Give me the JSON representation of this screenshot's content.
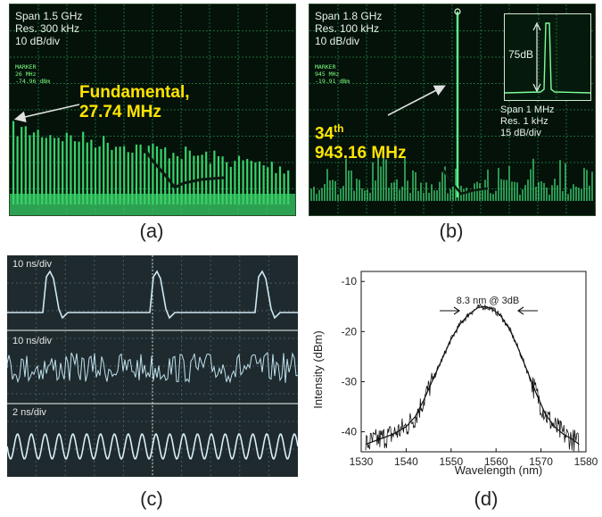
{
  "panels": {
    "a": {
      "caption": "(a)",
      "settings": [
        "Span 1.5 GHz",
        "Res. 300 kHz",
        "10 dB/div"
      ],
      "marker": [
        "MARKER",
        "26 MHz",
        "-74.96 dBm"
      ],
      "annotation_line1": "Fundamental,",
      "annotation_line2": "27.74 MHz",
      "colors": {
        "trace": "#39d26a",
        "screen": "#04120a"
      }
    },
    "b": {
      "caption": "(b)",
      "settings": [
        "Span 1.8 GHz",
        "Res. 100 kHz",
        "10 dB/div"
      ],
      "marker": [
        "MARKER",
        "945 MHz",
        "-19.91 dBm"
      ],
      "annotation_line1_base": "34",
      "annotation_line1_sup": "th",
      "annotation_line2": "943.16 MHz",
      "inset": {
        "label": "75dB",
        "settings": [
          "Span 1 MHz",
          "Res. 1 kHz",
          "15 dB/div"
        ]
      }
    },
    "c": {
      "caption": "(c)",
      "traces": [
        {
          "label": "10 ns/div"
        },
        {
          "label": "10 ns/div"
        },
        {
          "label": "2 ns/div"
        }
      ]
    },
    "d": {
      "caption": "(d)",
      "annotation": "8.3 nm @ 3dB"
    }
  },
  "chart_data": {
    "type": "line",
    "title": "",
    "xlabel": "Wavelength (nm)",
    "ylabel": "Intensity (dBm)",
    "xlim": [
      1530,
      1580
    ],
    "ylim": [
      -44,
      -8
    ],
    "xticks": [
      1530,
      1540,
      1550,
      1560,
      1570,
      1580
    ],
    "yticks": [
      -10,
      -20,
      -30,
      -40
    ],
    "grid": false,
    "series": [
      {
        "x": [
          1531,
          1534,
          1537,
          1540,
          1542,
          1544,
          1546,
          1548,
          1550,
          1552,
          1554,
          1556,
          1557.5,
          1559,
          1561,
          1563,
          1565,
          1567,
          1569,
          1571,
          1573,
          1575,
          1577,
          1578.5
        ],
        "y": [
          -42.5,
          -41.5,
          -40.5,
          -39.0,
          -37.0,
          -33.5,
          -29.5,
          -25.5,
          -21.5,
          -18.5,
          -16.5,
          -15.2,
          -15.0,
          -15.4,
          -16.8,
          -19.5,
          -23.5,
          -28.0,
          -32.5,
          -36.5,
          -39.0,
          -40.5,
          -41.5,
          -42.5
        ]
      }
    ]
  }
}
